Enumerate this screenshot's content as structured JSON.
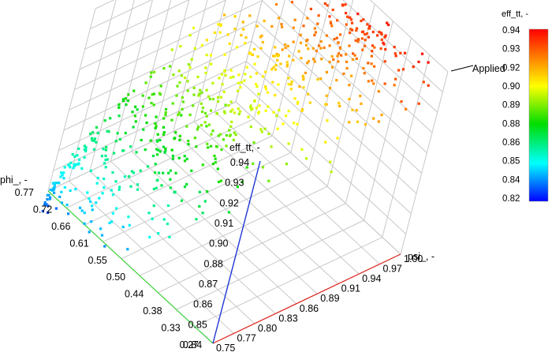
{
  "chart_data": {
    "type": "scatter3d",
    "axes": {
      "x": {
        "label": "psi_, -",
        "range": [
          0.75,
          1.0
        ],
        "ticks": [
          "0.75",
          "0.77",
          "0.80",
          "0.83",
          "0.86",
          "0.89",
          "0.91",
          "0.94",
          "0.97",
          "1.00"
        ]
      },
      "y": {
        "label": "phi_, -",
        "range": [
          0.27,
          0.77
        ],
        "ticks": [
          "0.27",
          "0.33",
          "0.38",
          "0.44",
          "0.50",
          "0.55",
          "0.61",
          "0.66",
          "0.72",
          "0.77"
        ]
      },
      "z": {
        "label": "eff_tt, -",
        "range": [
          0.84,
          0.94
        ],
        "ticks": [
          "0.84",
          "0.85",
          "0.86",
          "0.87",
          "0.88",
          "0.90",
          "0.91",
          "0.92",
          "0.93",
          "0.94"
        ]
      }
    },
    "colorbar": {
      "title": "eff_tt, -",
      "range": [
        0.82,
        0.94
      ],
      "ticks": [
        "0.94",
        "0.93",
        "0.92",
        "0.90",
        "0.89",
        "0.88",
        "0.86",
        "0.85",
        "0.84",
        "0.82"
      ]
    },
    "annotation": {
      "text": "Applied"
    },
    "grid": true,
    "point_count": 700
  }
}
